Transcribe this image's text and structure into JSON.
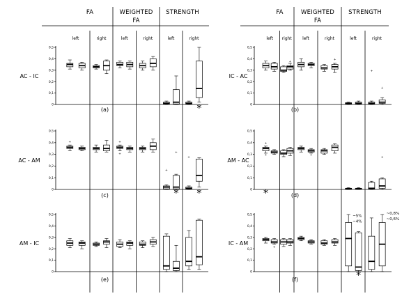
{
  "chart_data": {
    "type": "box",
    "y_ticks": [
      "0",
      "0,1",
      "0,2",
      "0,3",
      "0,4",
      "0,5"
    ],
    "ylim": [
      0,
      0.5
    ],
    "columns": [
      {
        "title_lines": [
          "FA"
        ]
      },
      {
        "title_lines": [
          "WEIGHTED",
          "FA"
        ]
      },
      {
        "title_lines": [
          "STRENGTH"
        ]
      }
    ],
    "side_labels": [
      "left",
      "right"
    ],
    "panels": [
      {
        "label": "AC - IC",
        "caption": "(a)",
        "boxes": [
          {
            "min": 0.31,
            "q1": 0.33,
            "median": 0.35,
            "q3": 0.36,
            "max": 0.39,
            "outliers": []
          },
          {
            "min": 0.3,
            "q1": 0.32,
            "median": 0.34,
            "q3": 0.36,
            "max": 0.37,
            "outliers": []
          },
          {
            "min": 0.31,
            "q1": 0.32,
            "median": 0.33,
            "q3": 0.34,
            "max": 0.35,
            "outliers": []
          },
          {
            "min": 0.27,
            "q1": 0.3,
            "median": 0.34,
            "q3": 0.38,
            "max": 0.39,
            "outliers": []
          },
          {
            "min": 0.32,
            "q1": 0.34,
            "median": 0.35,
            "q3": 0.37,
            "max": 0.38,
            "outliers": []
          },
          {
            "min": 0.31,
            "q1": 0.33,
            "median": 0.35,
            "q3": 0.37,
            "max": 0.38,
            "outliers": []
          },
          {
            "min": 0.3,
            "q1": 0.32,
            "median": 0.34,
            "q3": 0.36,
            "max": 0.38,
            "outliers": []
          },
          {
            "min": 0.3,
            "q1": 0.33,
            "median": 0.36,
            "q3": 0.4,
            "max": 0.42,
            "outliers": []
          },
          {
            "min": 0.0,
            "q1": 0.005,
            "median": 0.01,
            "q3": 0.02,
            "max": 0.03,
            "outliers": []
          },
          {
            "min": 0.0,
            "q1": 0.005,
            "median": 0.02,
            "q3": 0.13,
            "max": 0.25,
            "outliers": []
          },
          {
            "min": 0.0,
            "q1": 0.005,
            "median": 0.01,
            "q3": 0.02,
            "max": 0.03,
            "outliers": []
          },
          {
            "min": 0.02,
            "q1": 0.06,
            "median": 0.14,
            "q3": 0.38,
            "max": 0.5,
            "outliers": []
          }
        ],
        "stars": [
          11
        ]
      },
      {
        "label": "IC - AC",
        "caption": "(b)",
        "boxes": [
          {
            "min": 0.3,
            "q1": 0.32,
            "median": 0.34,
            "q3": 0.36,
            "max": 0.38,
            "outliers": []
          },
          {
            "min": 0.29,
            "q1": 0.31,
            "median": 0.33,
            "q3": 0.36,
            "max": 0.37,
            "outliers": []
          },
          {
            "min": 0.28,
            "q1": 0.29,
            "median": 0.3,
            "q3": 0.33,
            "max": 0.34,
            "outliers": []
          },
          {
            "min": 0.3,
            "q1": 0.31,
            "median": 0.33,
            "q3": 0.34,
            "max": 0.36,
            "outliers": [
              0.38
            ]
          },
          {
            "min": 0.3,
            "q1": 0.33,
            "median": 0.35,
            "q3": 0.37,
            "max": 0.4,
            "outliers": []
          },
          {
            "min": 0.32,
            "q1": 0.34,
            "median": 0.35,
            "q3": 0.36,
            "max": 0.37,
            "outliers": []
          },
          {
            "min": 0.29,
            "q1": 0.31,
            "median": 0.32,
            "q3": 0.34,
            "max": 0.35,
            "outliers": []
          },
          {
            "min": 0.28,
            "q1": 0.31,
            "median": 0.33,
            "q3": 0.35,
            "max": 0.36,
            "outliers": [
              0.4
            ]
          },
          {
            "min": 0.0,
            "q1": 0.005,
            "median": 0.01,
            "q3": 0.015,
            "max": 0.02,
            "outliers": []
          },
          {
            "min": 0.0,
            "q1": 0.005,
            "median": 0.01,
            "q3": 0.02,
            "max": 0.03,
            "outliers": []
          },
          {
            "min": 0.0,
            "q1": 0.005,
            "median": 0.01,
            "q3": 0.02,
            "max": 0.03,
            "outliers": [
              0.3
            ]
          },
          {
            "min": 0.0,
            "q1": 0.01,
            "median": 0.02,
            "q3": 0.04,
            "max": 0.06,
            "outliers": [
              0.15
            ]
          }
        ],
        "stars": []
      },
      {
        "label": "AC - AM",
        "caption": "(c)",
        "boxes": [
          {
            "min": 0.33,
            "q1": 0.35,
            "median": 0.36,
            "q3": 0.37,
            "max": 0.38,
            "outliers": [
              0.41
            ]
          },
          {
            "min": 0.33,
            "q1": 0.34,
            "median": 0.35,
            "q3": 0.36,
            "max": 0.37,
            "outliers": []
          },
          {
            "min": 0.32,
            "q1": 0.34,
            "median": 0.35,
            "q3": 0.36,
            "max": 0.38,
            "outliers": []
          },
          {
            "min": 0.32,
            "q1": 0.33,
            "median": 0.35,
            "q3": 0.38,
            "max": 0.42,
            "outliers": []
          },
          {
            "min": 0.33,
            "q1": 0.35,
            "median": 0.36,
            "q3": 0.37,
            "max": 0.38,
            "outliers": [
              0.41,
              0.31
            ]
          },
          {
            "min": 0.32,
            "q1": 0.34,
            "median": 0.35,
            "q3": 0.36,
            "max": 0.37,
            "outliers": []
          },
          {
            "min": 0.32,
            "q1": 0.34,
            "median": 0.35,
            "q3": 0.36,
            "max": 0.37,
            "outliers": []
          },
          {
            "min": 0.32,
            "q1": 0.34,
            "median": 0.37,
            "q3": 0.4,
            "max": 0.43,
            "outliers": []
          },
          {
            "min": 0.0,
            "q1": 0.005,
            "median": 0.02,
            "q3": 0.03,
            "max": 0.04,
            "outliers": [
              0.17
            ]
          },
          {
            "min": 0.0,
            "q1": 0.005,
            "median": 0.02,
            "q3": 0.12,
            "max": 0.13,
            "outliers": [
              0.32
            ]
          },
          {
            "min": 0.0,
            "q1": 0.005,
            "median": 0.01,
            "q3": 0.02,
            "max": 0.03,
            "outliers": [
              0.28
            ]
          },
          {
            "min": 0.02,
            "q1": 0.07,
            "median": 0.12,
            "q3": 0.26,
            "max": 0.27,
            "outliers": []
          }
        ],
        "stars": [
          9,
          11
        ]
      },
      {
        "label": "AM - AC",
        "caption": "(d)",
        "boxes": [
          {
            "min": 0.31,
            "q1": 0.33,
            "median": 0.35,
            "q3": 0.36,
            "max": 0.37,
            "outliers": [
              0.4,
              0.3
            ]
          },
          {
            "min": 0.3,
            "q1": 0.31,
            "median": 0.32,
            "q3": 0.33,
            "max": 0.34,
            "outliers": []
          },
          {
            "min": 0.28,
            "q1": 0.3,
            "median": 0.31,
            "q3": 0.33,
            "max": 0.34,
            "outliers": []
          },
          {
            "min": 0.29,
            "q1": 0.31,
            "median": 0.33,
            "q3": 0.35,
            "max": 0.36,
            "outliers": []
          },
          {
            "min": 0.32,
            "q1": 0.34,
            "median": 0.35,
            "q3": 0.36,
            "max": 0.37,
            "outliers": []
          },
          {
            "min": 0.31,
            "q1": 0.32,
            "median": 0.33,
            "q3": 0.34,
            "max": 0.35,
            "outliers": [
              0.3
            ]
          },
          {
            "min": 0.3,
            "q1": 0.31,
            "median": 0.33,
            "q3": 0.34,
            "max": 0.35,
            "outliers": []
          },
          {
            "min": 0.31,
            "q1": 0.33,
            "median": 0.36,
            "q3": 0.38,
            "max": 0.39,
            "outliers": []
          },
          {
            "min": 0.0,
            "q1": 0.003,
            "median": 0.005,
            "q3": 0.01,
            "max": 0.015,
            "outliers": []
          },
          {
            "min": 0.0,
            "q1": 0.003,
            "median": 0.005,
            "q3": 0.01,
            "max": 0.015,
            "outliers": []
          },
          {
            "min": 0.0,
            "q1": 0.005,
            "median": 0.01,
            "q3": 0.06,
            "max": 0.07,
            "outliers": []
          },
          {
            "min": 0.0,
            "q1": 0.01,
            "median": 0.03,
            "q3": 0.09,
            "max": 0.1,
            "outliers": [
              0.28
            ]
          }
        ],
        "stars": [
          0
        ]
      },
      {
        "label": "AM - IC",
        "caption": "(e)",
        "boxes": [
          {
            "min": 0.21,
            "q1": 0.23,
            "median": 0.25,
            "q3": 0.27,
            "max": 0.29,
            "outliers": []
          },
          {
            "min": 0.2,
            "q1": 0.23,
            "median": 0.25,
            "q3": 0.26,
            "max": 0.27,
            "outliers": []
          },
          {
            "min": 0.22,
            "q1": 0.23,
            "median": 0.24,
            "q3": 0.25,
            "max": 0.26,
            "outliers": []
          },
          {
            "min": 0.21,
            "q1": 0.24,
            "median": 0.26,
            "q3": 0.27,
            "max": 0.29,
            "outliers": []
          },
          {
            "min": 0.21,
            "q1": 0.22,
            "median": 0.24,
            "q3": 0.26,
            "max": 0.28,
            "outliers": []
          },
          {
            "min": 0.2,
            "q1": 0.23,
            "median": 0.25,
            "q3": 0.26,
            "max": 0.27,
            "outliers": []
          },
          {
            "min": 0.21,
            "q1": 0.23,
            "median": 0.24,
            "q3": 0.26,
            "max": 0.27,
            "outliers": []
          },
          {
            "min": 0.22,
            "q1": 0.24,
            "median": 0.26,
            "q3": 0.28,
            "max": 0.3,
            "outliers": []
          },
          {
            "min": 0.0,
            "q1": 0.02,
            "median": 0.05,
            "q3": 0.31,
            "max": 0.33,
            "outliers": []
          },
          {
            "min": 0.0,
            "q1": 0.01,
            "median": 0.03,
            "q3": 0.09,
            "max": 0.23,
            "outliers": []
          },
          {
            "min": 0.02,
            "q1": 0.05,
            "median": 0.09,
            "q3": 0.3,
            "max": 0.36,
            "outliers": []
          },
          {
            "min": 0.02,
            "q1": 0.06,
            "median": 0.13,
            "q3": 0.45,
            "max": 0.46,
            "outliers": []
          }
        ],
        "stars": []
      },
      {
        "label": "IC - AM",
        "caption": "(f)",
        "boxes": [
          {
            "min": 0.25,
            "q1": 0.27,
            "median": 0.28,
            "q3": 0.29,
            "max": 0.3,
            "outliers": []
          },
          {
            "min": 0.24,
            "q1": 0.25,
            "median": 0.26,
            "q3": 0.28,
            "max": 0.29,
            "outliers": [
              0.22
            ]
          },
          {
            "min": 0.22,
            "q1": 0.24,
            "median": 0.26,
            "q3": 0.28,
            "max": 0.29,
            "outliers": []
          },
          {
            "min": 0.23,
            "q1": 0.25,
            "median": 0.26,
            "q3": 0.28,
            "max": 0.29,
            "outliers": []
          },
          {
            "min": 0.27,
            "q1": 0.28,
            "median": 0.29,
            "q3": 0.3,
            "max": 0.31,
            "outliers": []
          },
          {
            "min": 0.24,
            "q1": 0.25,
            "median": 0.26,
            "q3": 0.27,
            "max": 0.28,
            "outliers": []
          },
          {
            "min": 0.23,
            "q1": 0.24,
            "median": 0.25,
            "q3": 0.27,
            "max": 0.28,
            "outliers": []
          },
          {
            "min": 0.23,
            "q1": 0.25,
            "median": 0.26,
            "q3": 0.28,
            "max": 0.29,
            "outliers": []
          },
          {
            "min": 0.0,
            "q1": 0.05,
            "median": 0.29,
            "q3": 0.43,
            "max": 0.5,
            "outliers": []
          },
          {
            "min": 0.0,
            "q1": 0.01,
            "median": 0.04,
            "q3": 0.34,
            "max": 0.35,
            "outliers": []
          },
          {
            "min": 0.0,
            "q1": 0.02,
            "median": 0.09,
            "q3": 0.31,
            "max": 0.47,
            "outliers": []
          },
          {
            "min": 0.0,
            "q1": 0.05,
            "median": 0.24,
            "q3": 0.43,
            "max": 0.5,
            "outliers": []
          }
        ],
        "stars": [
          9
        ],
        "annotations": [
          "~5%",
          "~4%",
          "~0,8%",
          "~0,6%"
        ]
      }
    ]
  }
}
